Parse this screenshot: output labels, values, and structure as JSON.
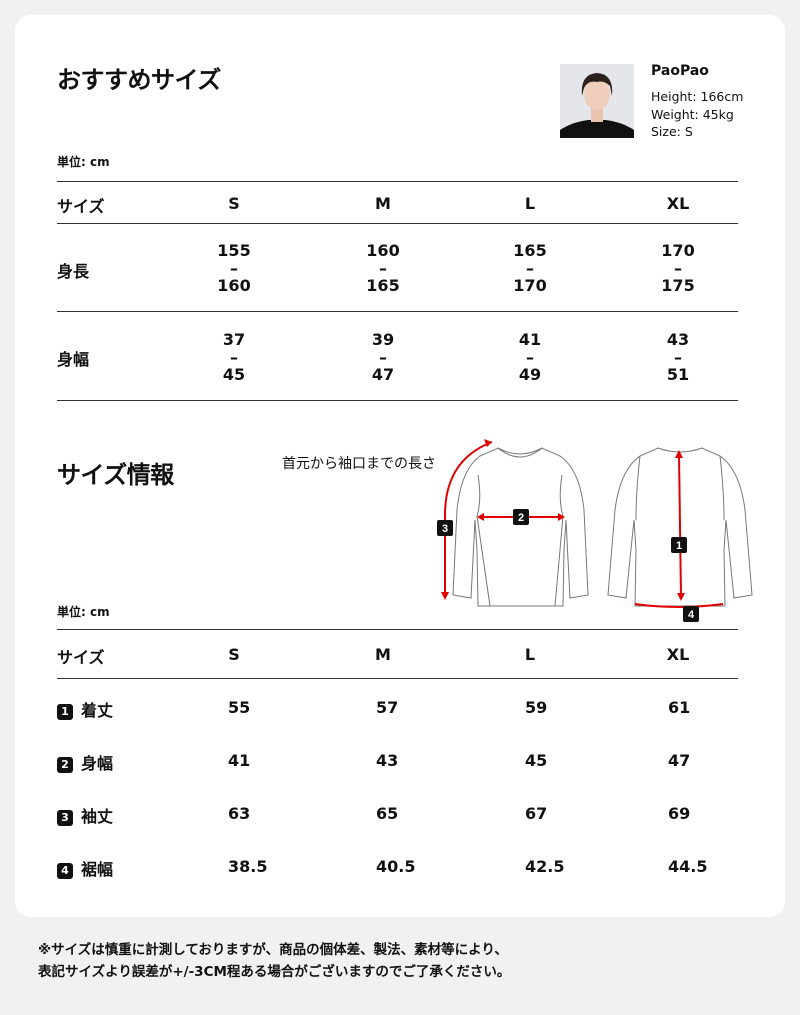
{
  "recommend": {
    "title": "おすすめサイズ",
    "unit": "単位: cm",
    "model": {
      "name": "PaoPao",
      "height": "Height: 166cm",
      "weight": "Weight: 45kg",
      "size": "Size: S"
    },
    "header": [
      "サイズ",
      "S",
      "M",
      "L",
      "XL"
    ],
    "rows": [
      {
        "label": "身長",
        "values": [
          [
            "155",
            "–",
            "160"
          ],
          [
            "160",
            "–",
            "165"
          ],
          [
            "165",
            "–",
            "170"
          ],
          [
            "170",
            "–",
            "175"
          ]
        ]
      },
      {
        "label": "身幅",
        "values": [
          [
            "37",
            "–",
            "45"
          ],
          [
            "39",
            "–",
            "47"
          ],
          [
            "41",
            "–",
            "49"
          ],
          [
            "43",
            "–",
            "51"
          ]
        ]
      }
    ]
  },
  "info": {
    "title": "サイズ情報",
    "sleeve_note": "首元から袖口までの長さ",
    "unit": "単位: cm",
    "header": [
      "サイズ",
      "S",
      "M",
      "L",
      "XL"
    ],
    "rows": [
      {
        "num": "1",
        "label": "着丈",
        "values": [
          "55",
          "57",
          "59",
          "61"
        ]
      },
      {
        "num": "2",
        "label": "身幅",
        "values": [
          "41",
          "43",
          "45",
          "47"
        ]
      },
      {
        "num": "3",
        "label": "袖丈",
        "values": [
          "63",
          "65",
          "67",
          "69"
        ]
      },
      {
        "num": "4",
        "label": "裾幅",
        "values": [
          "38.5",
          "40.5",
          "42.5",
          "44.5"
        ]
      }
    ],
    "diagram_markers": [
      "1",
      "2",
      "3",
      "4"
    ],
    "accent": "#e00000"
  },
  "footer": {
    "line1": "※サイズは慎重に計測しておりますが、商品の個体差、製法、素材等により、",
    "line2": "表記サイズより誤差が+/-3CM程ある場合がございますのでご了承ください。"
  }
}
